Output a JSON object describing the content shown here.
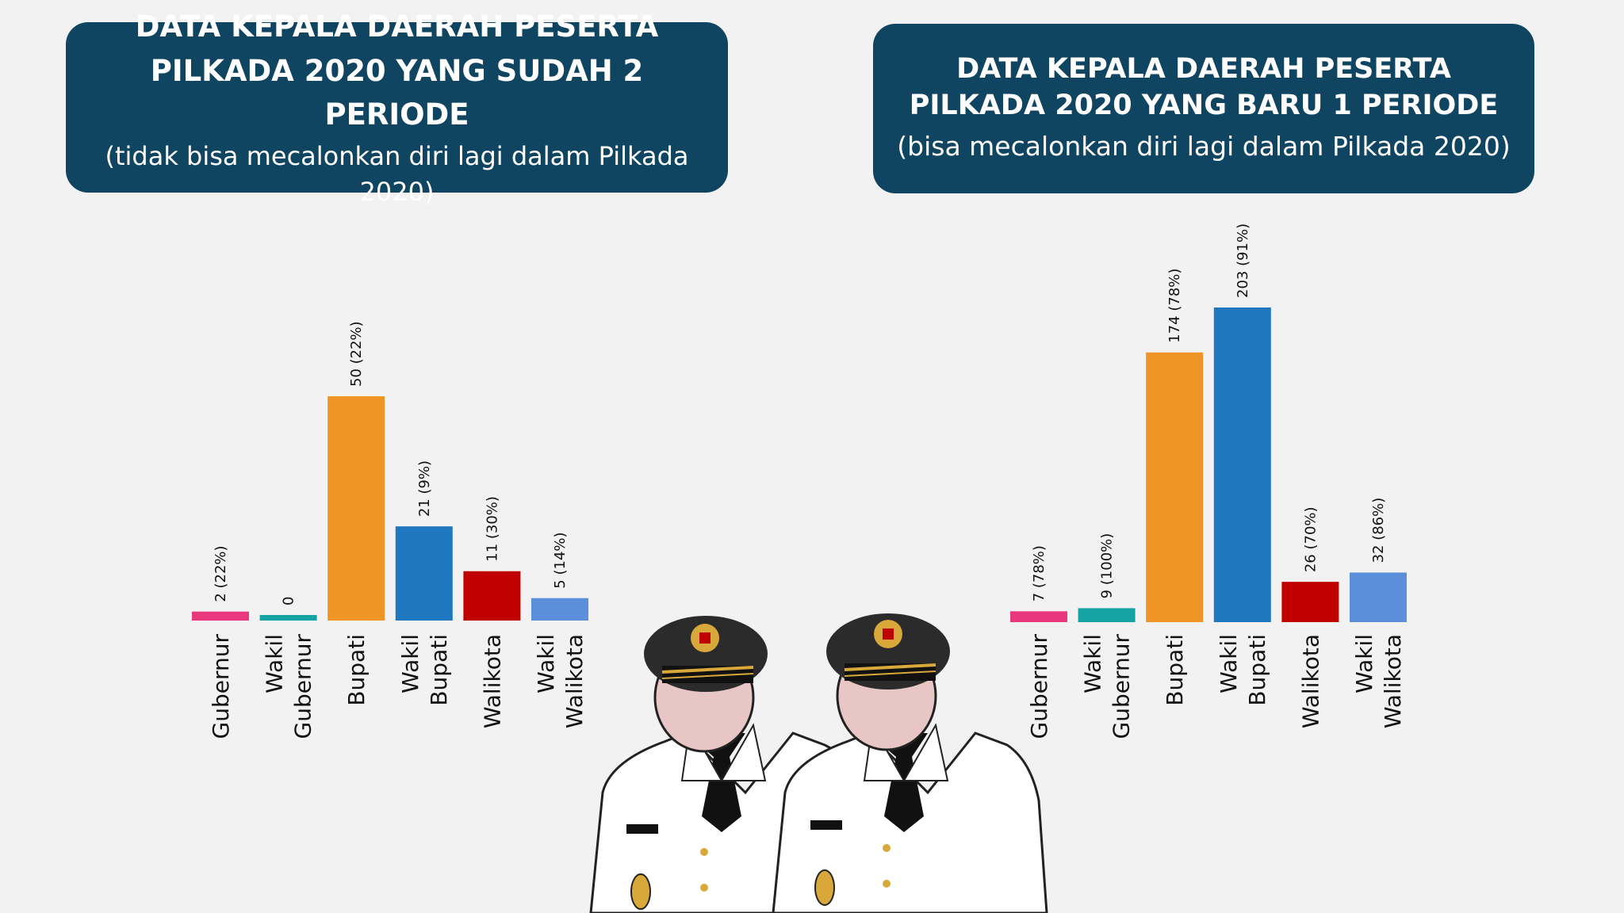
{
  "left_panel": {
    "title": "DATA KEPALA DAERAH PESERTA PILKADA 2020 YANG SUDAH 2 PERIODE",
    "subtitle": "(tidak bisa mecalonkan diri lagi dalam Pilkada 2020)"
  },
  "right_panel": {
    "title": "DATA KEPALA DAERAH PESERTA PILKADA 2020 YANG BARU 1 PERIODE",
    "subtitle": "(bisa mecalonkan diri lagi dalam Pilkada 2020)"
  },
  "colors": {
    "title_bg": "#0f4561",
    "gubernur": "#e8377c",
    "wakil_gubernur": "#16a3a3",
    "bupati": "#ee9525",
    "wakil_bupati": "#1f78bf",
    "walikota": "#c00000",
    "wakil_walikota": "#5b8fd9"
  },
  "chart_data": [
    {
      "type": "bar",
      "categories": [
        [
          "Gubernur"
        ],
        [
          "Wakil",
          "Gubernur"
        ],
        [
          "Bupati"
        ],
        [
          "Wakil",
          "Bupati"
        ],
        [
          "Walikota"
        ],
        [
          "Wakil",
          "Walikota"
        ]
      ],
      "values": [
        2,
        0,
        50,
        21,
        11,
        5
      ],
      "data_labels": [
        "2 (22%)",
        "0",
        "50  (22%)",
        "21 (9%)",
        "11 (30%)",
        "5 (14%)"
      ],
      "ylim": [
        0,
        50
      ],
      "grid": false,
      "legend": "none"
    },
    {
      "type": "bar",
      "categories": [
        [
          "Gubernur"
        ],
        [
          "Wakil",
          "Gubernur"
        ],
        [
          "Bupati"
        ],
        [
          "Wakil",
          "Bupati"
        ],
        [
          "Walikota"
        ],
        [
          "Wakil",
          "Walikota"
        ]
      ],
      "values": [
        7,
        9,
        174,
        203,
        26,
        32
      ],
      "data_labels": [
        "7 (78%)",
        "9 (100%)",
        "174 (78%)",
        "203 (91%)",
        "26 (70%)",
        "32 (86%)"
      ],
      "ylim": [
        0,
        203
      ],
      "grid": false,
      "legend": "none"
    }
  ]
}
